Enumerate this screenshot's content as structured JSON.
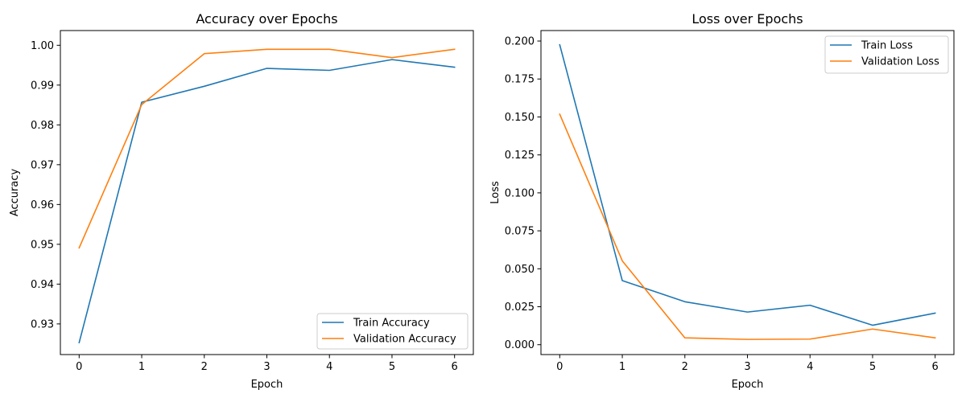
{
  "chart_data": [
    {
      "type": "line",
      "title": "Accuracy over Epochs",
      "xlabel": "Epoch",
      "ylabel": "Accuracy",
      "x": [
        0,
        1,
        2,
        3,
        4,
        5,
        6
      ],
      "xlim": [
        -0.3,
        6.3
      ],
      "ylim": [
        0.9223,
        1.0037
      ],
      "xticks": [
        0,
        1,
        2,
        3,
        4,
        5,
        6
      ],
      "yticks": [
        0.93,
        0.94,
        0.95,
        0.96,
        0.97,
        0.98,
        0.99,
        1.0
      ],
      "ytick_labels": [
        "0.93",
        "0.94",
        "0.95",
        "0.96",
        "0.97",
        "0.98",
        "0.99",
        "1.00"
      ],
      "legend_position": "lower-right",
      "grid": false,
      "series": [
        {
          "name": "Train Accuracy",
          "color": "#1f77b4",
          "values": [
            0.9253,
            0.9857,
            0.9897,
            0.9942,
            0.9937,
            0.9964,
            0.9945
          ]
        },
        {
          "name": "Validation Accuracy",
          "color": "#ff7f0e",
          "values": [
            0.9491,
            0.9851,
            0.9979,
            0.999,
            0.999,
            0.9969,
            0.999
          ]
        }
      ]
    },
    {
      "type": "line",
      "title": "Loss over Epochs",
      "xlabel": "Epoch",
      "ylabel": "Loss",
      "x": [
        0,
        1,
        2,
        3,
        4,
        5,
        6
      ],
      "xlim": [
        -0.3,
        6.3
      ],
      "ylim": [
        -0.0065,
        0.2069
      ],
      "xticks": [
        0,
        1,
        2,
        3,
        4,
        5,
        6
      ],
      "yticks": [
        0.0,
        0.025,
        0.05,
        0.075,
        0.1,
        0.125,
        0.15,
        0.175,
        0.2
      ],
      "ytick_labels": [
        "0.000",
        "0.025",
        "0.050",
        "0.075",
        "0.100",
        "0.125",
        "0.150",
        "0.175",
        "0.200"
      ],
      "legend_position": "upper-right",
      "grid": false,
      "series": [
        {
          "name": "Train Loss",
          "color": "#1f77b4",
          "values": [
            0.1975,
            0.0422,
            0.0283,
            0.0215,
            0.026,
            0.0128,
            0.0208
          ]
        },
        {
          "name": "Validation Loss",
          "color": "#ff7f0e",
          "values": [
            0.1518,
            0.0552,
            0.0045,
            0.0035,
            0.0037,
            0.0103,
            0.0045
          ]
        }
      ]
    }
  ]
}
